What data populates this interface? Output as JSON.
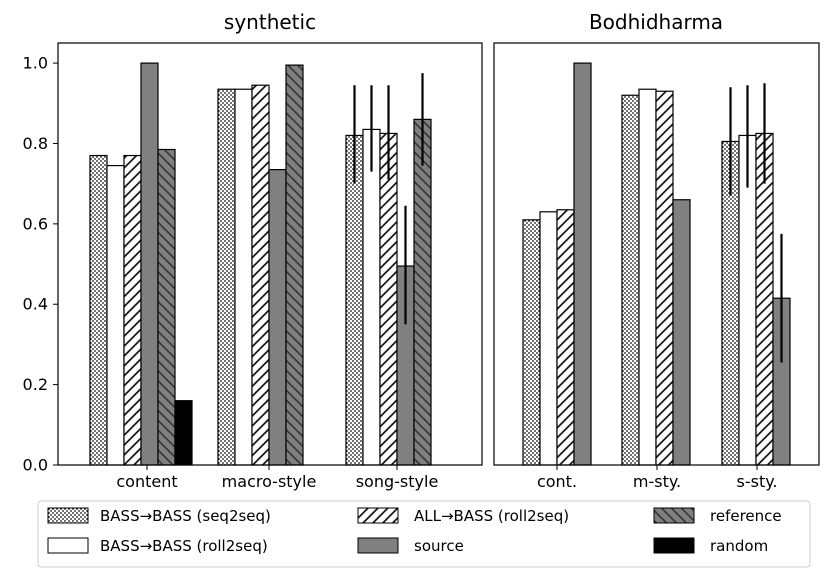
{
  "chart_data": [
    {
      "type": "bar",
      "title": "synthetic",
      "categories": [
        "content",
        "macro-style",
        "song-style"
      ],
      "ylim": [
        0,
        1.05
      ],
      "yticks": [
        "0.0",
        "0.2",
        "0.4",
        "0.6",
        "0.8",
        "1.0"
      ],
      "ytick_values": [
        0.0,
        0.2,
        0.4,
        0.6,
        0.8,
        1.0
      ],
      "xlabel": "",
      "ylabel": "",
      "series": [
        {
          "name": "BASS→BASS (seq2seq)",
          "key": "s2s",
          "values": [
            0.77,
            0.935,
            0.82
          ],
          "err": [
            null,
            null,
            [
              0.7,
              0.945
            ]
          ]
        },
        {
          "name": "BASS→BASS (roll2seq)",
          "key": "r2s",
          "values": [
            0.745,
            0.935,
            0.835
          ],
          "err": [
            null,
            null,
            [
              0.73,
              0.945
            ]
          ]
        },
        {
          "name": "ALL→BASS (roll2seq)",
          "key": "all",
          "values": [
            0.77,
            0.945,
            0.825
          ],
          "err": [
            null,
            null,
            [
              0.71,
              0.945
            ]
          ]
        },
        {
          "name": "source",
          "key": "src",
          "values": [
            1.0,
            0.735,
            0.495
          ],
          "err": [
            null,
            null,
            [
              0.35,
              0.645
            ]
          ]
        },
        {
          "name": "reference",
          "key": "ref",
          "values": [
            0.785,
            0.995,
            0.86
          ],
          "err": [
            null,
            null,
            [
              0.745,
              0.975
            ]
          ]
        },
        {
          "name": "random",
          "key": "rnd",
          "values": [
            0.16,
            null,
            null
          ],
          "err": [
            null,
            null,
            null
          ]
        }
      ]
    },
    {
      "type": "bar",
      "title": "Bodhidharma",
      "categories": [
        "cont.",
        "m-sty.",
        "s-sty."
      ],
      "ylim": [
        0,
        1.05
      ],
      "xlabel": "",
      "ylabel": "",
      "series": [
        {
          "name": "BASS→BASS (seq2seq)",
          "key": "s2s",
          "values": [
            0.61,
            0.92,
            0.805
          ],
          "err": [
            null,
            null,
            [
              0.67,
              0.94
            ]
          ]
        },
        {
          "name": "BASS→BASS (roll2seq)",
          "key": "r2s",
          "values": [
            0.63,
            0.935,
            0.82
          ],
          "err": [
            null,
            null,
            [
              0.69,
              0.945
            ]
          ]
        },
        {
          "name": "ALL→BASS (roll2seq)",
          "key": "all",
          "values": [
            0.635,
            0.93,
            0.825
          ],
          "err": [
            null,
            null,
            [
              0.7,
              0.95
            ]
          ]
        },
        {
          "name": "source",
          "key": "src",
          "values": [
            1.0,
            0.66,
            0.415
          ],
          "err": [
            null,
            null,
            [
              0.255,
              0.575
            ]
          ]
        }
      ]
    }
  ],
  "legend": {
    "position": "bottom",
    "items": [
      {
        "label": "BASS→BASS (seq2seq)",
        "key": "s2s"
      },
      {
        "label": "BASS→BASS (roll2seq)",
        "key": "r2s"
      },
      {
        "label": "ALL→BASS (roll2seq)",
        "key": "all"
      },
      {
        "label": "source",
        "key": "src"
      },
      {
        "label": "reference",
        "key": "ref"
      },
      {
        "label": "random",
        "key": "rnd"
      }
    ]
  }
}
